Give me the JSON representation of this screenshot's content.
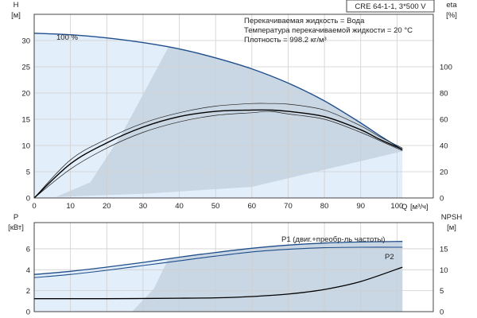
{
  "chart_data": [
    {
      "type": "line",
      "title": "CRE 64-1-1, 3*500 V",
      "info_lines": [
        "Перекачиваемая жидкость = Вода",
        "Температура перекачиваемой жидкости = 20 °C",
        "Плотность = 998.2 кг/м³"
      ],
      "ylabel": "H",
      "yunit": "[м]",
      "y2label": "eta",
      "y2unit": "[%]",
      "xlabel": "Q",
      "xunit": "[м³/ч]",
      "xlim": [
        0,
        110
      ],
      "ylim": [
        0,
        35
      ],
      "y2lim": [
        0,
        140
      ],
      "x_ticks": [
        "0",
        "10",
        "20",
        "30",
        "40",
        "50",
        "60",
        "70",
        "80",
        "90",
        "100"
      ],
      "y_ticks": [
        "0",
        "5",
        "10",
        "15",
        "20",
        "25",
        "30"
      ],
      "y2_ticks": [
        "0",
        "20",
        "40",
        "60",
        "80",
        "100"
      ],
      "speed_label": "100 %",
      "colors": {
        "curve": "#1f4e8c",
        "eta": "#000000",
        "band": "#c9d6e3",
        "light": "#e3eefb",
        "grid": "#cfcfcf"
      },
      "series": [
        {
          "role": "H",
          "x": [
            0,
            10,
            20,
            30,
            40,
            50,
            60,
            70,
            80,
            90,
            95,
            101.5
          ],
          "values": [
            31.4,
            31.1,
            30.5,
            29.6,
            28.4,
            26.7,
            24.6,
            21.9,
            18.5,
            14.3,
            12.0,
            9.2
          ]
        },
        {
          "role": "eta",
          "x": [
            0,
            10,
            20,
            30,
            40,
            50,
            60,
            65,
            70,
            80,
            90,
            95,
            101.5
          ],
          "values": [
            0,
            26,
            42,
            54,
            62,
            66,
            67,
            67,
            66,
            62,
            52,
            45,
            37
          ]
        },
        {
          "role": "eta-upper",
          "x": [
            0,
            10,
            20,
            30,
            40,
            50,
            60,
            65,
            70,
            80,
            90,
            95,
            101.5
          ],
          "values": [
            0,
            29,
            45,
            57,
            65,
            70,
            72,
            72,
            71.5,
            67,
            55,
            47,
            38
          ]
        },
        {
          "role": "eta-lower",
          "x": [
            0,
            10,
            20,
            30,
            40,
            50,
            60,
            65,
            70,
            80,
            90,
            95,
            101.5
          ],
          "values": [
            0,
            22,
            38,
            50,
            58,
            63,
            65,
            66,
            64,
            60,
            50,
            44,
            36
          ]
        }
      ]
    },
    {
      "type": "line",
      "ylabel": "P",
      "yunit": "[кВт]",
      "y2label": "NPSH",
      "y2unit": "[м]",
      "xlim": [
        0,
        110
      ],
      "ylim": [
        0,
        8.5
      ],
      "y2lim": [
        0,
        21.25
      ],
      "y_ticks": [
        "0",
        "2",
        "4",
        "6"
      ],
      "y2_ticks": [
        "0",
        "5",
        "10",
        "15"
      ],
      "series": [
        {
          "name": "P1 (двиг.+преобр-ль частоты)",
          "x": [
            0,
            10,
            20,
            30,
            40,
            50,
            60,
            70,
            80,
            90,
            101.5
          ],
          "values": [
            3.55,
            3.85,
            4.25,
            4.7,
            5.2,
            5.65,
            6.05,
            6.35,
            6.55,
            6.65,
            6.7
          ]
        },
        {
          "name": "P2",
          "x": [
            0,
            10,
            20,
            30,
            40,
            50,
            60,
            70,
            80,
            90,
            101.5
          ],
          "values": [
            3.25,
            3.55,
            3.95,
            4.4,
            4.85,
            5.3,
            5.7,
            5.95,
            6.1,
            6.15,
            6.15
          ]
        },
        {
          "role": "NPSH",
          "x": [
            0,
            20,
            40,
            50,
            60,
            70,
            80,
            90,
            101.5
          ],
          "values": [
            3.1,
            3.1,
            3.2,
            3.3,
            3.6,
            4.2,
            5.3,
            7.2,
            10.6
          ]
        }
      ]
    }
  ]
}
